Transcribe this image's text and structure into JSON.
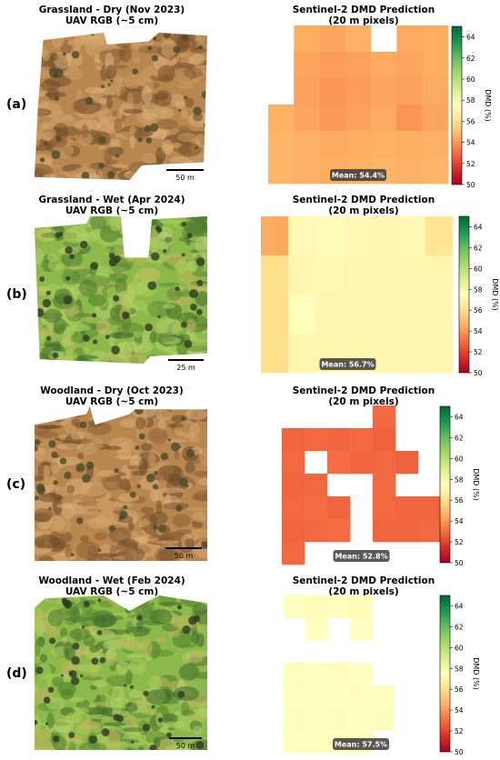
{
  "panels": [
    {
      "row_label": "(a)",
      "uav_title": "Grassland - Dry (Nov 2023)",
      "uav_subtitle": "UAV RGB (~5 cm)",
      "scale_label": "50 m",
      "uav_palette": "dry-brown",
      "s2_title": "Sentinel-2 DMD Prediction",
      "s2_subtitle": "(20 m pixels)",
      "mean_label": "Mean: 54.4%"
    },
    {
      "row_label": "(b)",
      "uav_title": "Grassland - Wet (Apr 2024)",
      "uav_subtitle": "UAV RGB (~5 cm)",
      "scale_label": "25 m",
      "uav_palette": "green",
      "s2_title": "Sentinel-2 DMD Prediction",
      "s2_subtitle": "(20 m pixels)",
      "mean_label": "Mean: 56.7%"
    },
    {
      "row_label": "(c)",
      "uav_title": "Woodland - Dry (Oct 2023)",
      "uav_subtitle": "UAV RGB (~5 cm)",
      "scale_label": "50 m",
      "uav_palette": "dry-brown",
      "s2_title": "Sentinel-2 DMD Prediction",
      "s2_subtitle": "(20 m pixels)",
      "mean_label": "Mean: 52.8%"
    },
    {
      "row_label": "(d)",
      "uav_title": "Woodland - Wet (Feb 2024)",
      "uav_subtitle": "UAV RGB (~5 cm)",
      "scale_label": "50 m",
      "uav_palette": "green",
      "s2_title": "Sentinel-2 DMD Prediction",
      "s2_subtitle": "(20 m pixels)",
      "mean_label": "Mean: 57.5%"
    }
  ],
  "chart_data": [
    {
      "type": "heatmap",
      "title": "Sentinel-2 DMD Prediction",
      "subtitle": "(20 m pixels)",
      "colorbar_label": "DMD (%)",
      "colorbar_ticks": [
        50,
        52,
        54,
        56,
        58,
        60,
        62,
        64
      ],
      "value_range": [
        50,
        65
      ],
      "colormap": "RdYlGn",
      "mean": 54.4,
      "grid": [
        [
          null,
          54.5,
          54.3,
          54.6,
          null,
          54.4,
          54.5
        ],
        [
          null,
          54.3,
          54.1,
          54.2,
          54.4,
          54.3,
          54.5
        ],
        [
          null,
          54.2,
          53.9,
          54.1,
          54.3,
          54.2,
          54.4
        ],
        [
          54.6,
          54.3,
          54.0,
          54.2,
          54.4,
          53.9,
          54.3
        ],
        [
          54.7,
          54.6,
          54.4,
          54.5,
          54.6,
          54.5,
          54.6
        ],
        [
          54.7,
          54.6,
          54.5,
          54.6,
          54.7,
          54.6,
          54.7
        ]
      ]
    },
    {
      "type": "heatmap",
      "title": "Sentinel-2 DMD Prediction",
      "subtitle": "(20 m pixels)",
      "colorbar_label": "DMD (%)",
      "colorbar_ticks": [
        50,
        52,
        54,
        56,
        58,
        60,
        62,
        64
      ],
      "value_range": [
        50,
        65
      ],
      "colormap": "RdYlGn",
      "mean": 56.7,
      "grid": [
        [
          54.4,
          57.2,
          57.3,
          57.2,
          57.1,
          57.2,
          56.3
        ],
        [
          56.0,
          57.1,
          57.2,
          57.0,
          57.0,
          57.1,
          57.0
        ],
        [
          56.0,
          57.4,
          57.0,
          57.0,
          57.0,
          57.0,
          57.1
        ],
        [
          56.0,
          57.0,
          57.0,
          57.0,
          57.0,
          57.1,
          57.0
        ]
      ]
    },
    {
      "type": "heatmap",
      "title": "Sentinel-2 DMD Prediction",
      "subtitle": "(20 m pixels)",
      "colorbar_label": "DMD (%)",
      "colorbar_ticks": [
        50,
        52,
        54,
        56,
        58,
        60,
        62,
        64
      ],
      "value_range": [
        50,
        65
      ],
      "colormap": "RdYlGn",
      "mean": 52.8,
      "grid": [
        [
          null,
          null,
          null,
          null,
          52.9,
          null,
          null
        ],
        [
          52.8,
          52.9,
          52.8,
          52.9,
          52.7,
          null,
          null
        ],
        [
          52.9,
          null,
          53.0,
          52.8,
          52.9,
          52.7,
          null
        ],
        [
          52.8,
          52.9,
          null,
          null,
          52.9,
          null,
          null
        ],
        [
          52.9,
          53.0,
          52.8,
          null,
          52.9,
          52.8,
          52.8
        ],
        [
          52.8,
          52.9,
          53.0,
          null,
          52.8,
          52.8,
          52.9
        ],
        [
          52.9,
          null,
          null,
          null,
          null,
          null,
          null
        ]
      ]
    },
    {
      "type": "heatmap",
      "title": "Sentinel-2 DMD Prediction",
      "subtitle": "(20 m pixels)",
      "colorbar_label": "DMD (%)",
      "colorbar_ticks": [
        50,
        52,
        54,
        56,
        58,
        60,
        62,
        64
      ],
      "value_range": [
        50,
        65
      ],
      "colormap": "RdYlGn",
      "mean": 57.5,
      "grid": [
        [
          57.6,
          57.3,
          57.5,
          57.3,
          null,
          null,
          null
        ],
        [
          null,
          57.5,
          null,
          57.5,
          null,
          null,
          null
        ],
        [
          null,
          null,
          null,
          null,
          null,
          null,
          null
        ],
        [
          57.6,
          57.5,
          57.4,
          57.5,
          null,
          null,
          null
        ],
        [
          57.5,
          57.6,
          57.5,
          57.4,
          57.5,
          null,
          null
        ],
        [
          57.6,
          57.5,
          57.6,
          57.5,
          57.6,
          null,
          null
        ],
        [
          57.5,
          57.6,
          57.5,
          57.6,
          null,
          null,
          null
        ]
      ]
    }
  ]
}
